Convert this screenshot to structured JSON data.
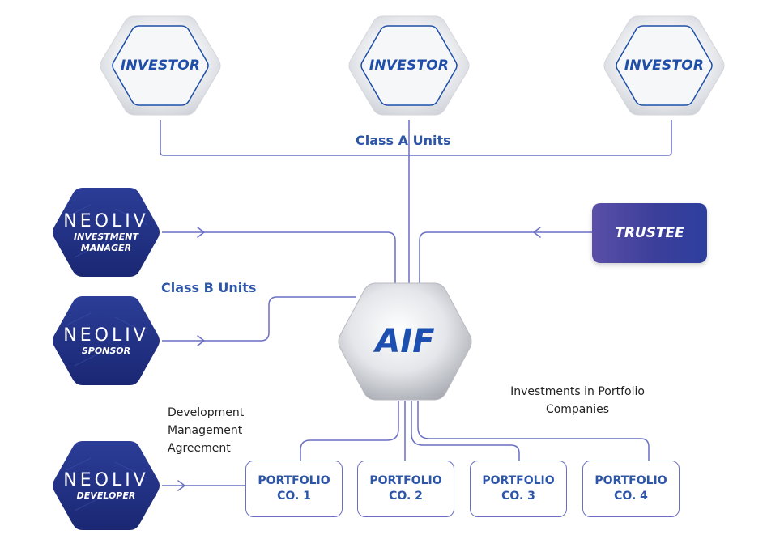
{
  "colors": {
    "line": "#6a6fc4",
    "text_blue": "#2d55a8",
    "hex_silver": "#e9eaee",
    "brand_navy": "#1e2f86",
    "trustee_purple": "#5a4fa8"
  },
  "investors": [
    {
      "label": "INVESTOR"
    },
    {
      "label": "INVESTOR"
    },
    {
      "label": "INVESTOR"
    }
  ],
  "class_a": "Class A Units",
  "class_b": "Class B Units",
  "aif": "AIF",
  "trustee": "TRUSTEE",
  "brand_entities": [
    {
      "brand": "NEOLIV",
      "role": [
        "INVESTMENT",
        "MANAGER"
      ]
    },
    {
      "brand": "NEOLIV",
      "role": [
        "SPONSOR"
      ]
    },
    {
      "brand": "NEOLIV",
      "role": [
        "DEVELOPER"
      ]
    }
  ],
  "development_note": [
    "Development",
    "Management",
    "Agreement"
  ],
  "investments_note": [
    "Investments in Portfolio",
    "Companies"
  ],
  "portfolios": [
    {
      "line1": "PORTFOLIO",
      "line2": "CO. 1"
    },
    {
      "line1": "PORTFOLIO",
      "line2": "CO. 2"
    },
    {
      "line1": "PORTFOLIO",
      "line2": "CO. 3"
    },
    {
      "line1": "PORTFOLIO",
      "line2": "CO. 4"
    }
  ]
}
